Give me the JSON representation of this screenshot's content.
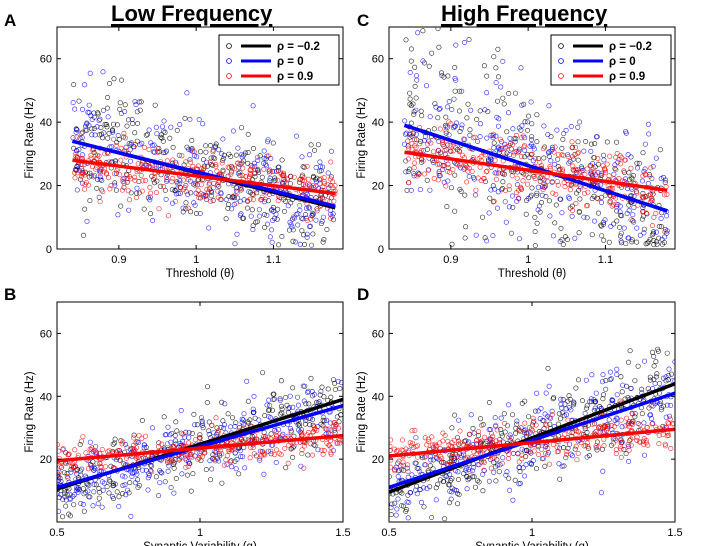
{
  "headings": {
    "left": "Low Frequency",
    "right": "High Frequency"
  },
  "legend": [
    {
      "label": "ρ = −0.2",
      "color": "#000000"
    },
    {
      "label": "ρ = 0",
      "color": "#0000ff"
    },
    {
      "label": "ρ = 0.9",
      "color": "#ff0000"
    }
  ],
  "chart_data": [
    {
      "id": "A",
      "type": "scatter",
      "panel_label": "A",
      "xlabel": "Threshold (θ)",
      "ylabel": "Firing Rate (Hz)",
      "xlim": [
        0.82,
        1.19
      ],
      "ylim": [
        0,
        70
      ],
      "xticks": [
        0.9,
        1,
        1.1
      ],
      "xtick_labels": [
        "0.9",
        "1",
        "1.1"
      ],
      "yticks": [
        0,
        20,
        40,
        60
      ],
      "ytick_labels": [
        "0",
        "20",
        "40",
        "60"
      ],
      "legend": true,
      "series": [
        {
          "name": "ρ = −0.2",
          "color": "#000000",
          "fit": [
            [
              0.84,
              34
            ],
            [
              1.18,
              13
            ]
          ],
          "spread": 10
        },
        {
          "name": "ρ = 0",
          "color": "#0000ff",
          "fit": [
            [
              0.84,
              34
            ],
            [
              1.18,
              13.5
            ]
          ],
          "spread": 10
        },
        {
          "name": "ρ = 0.9",
          "color": "#ff0000",
          "fit": [
            [
              0.84,
              28
            ],
            [
              1.18,
              17.5
            ]
          ],
          "spread": 5
        }
      ]
    },
    {
      "id": "C",
      "type": "scatter",
      "panel_label": "C",
      "xlabel": "Threshold (θ)",
      "ylabel": "Firing Rate (Hz)",
      "xlim": [
        0.82,
        1.19
      ],
      "ylim": [
        0,
        70
      ],
      "xticks": [
        0.9,
        1,
        1.1
      ],
      "xtick_labels": [
        "0.9",
        "1",
        "1.1"
      ],
      "yticks": [
        0,
        20,
        40,
        60
      ],
      "ytick_labels": [
        "0",
        "20",
        "40",
        "60"
      ],
      "legend": true,
      "series": [
        {
          "name": "ρ = −0.2",
          "color": "#000000",
          "fit": [
            [
              0.84,
              39
            ],
            [
              1.18,
              12
            ]
          ],
          "spread": 12
        },
        {
          "name": "ρ = 0",
          "color": "#0000ff",
          "fit": [
            [
              0.84,
              39
            ],
            [
              1.18,
              12
            ]
          ],
          "spread": 12
        },
        {
          "name": "ρ = 0.9",
          "color": "#ff0000",
          "fit": [
            [
              0.84,
              30.5
            ],
            [
              1.18,
              18.5
            ]
          ],
          "spread": 5
        }
      ]
    },
    {
      "id": "B",
      "type": "scatter",
      "panel_label": "B",
      "xlabel": "Synaptic Variability (q)",
      "ylabel": "Firing Rate (Hz)",
      "xlim": [
        0.5,
        1.5
      ],
      "ylim": [
        0,
        70
      ],
      "xticks": [
        0.5,
        1,
        1.5
      ],
      "xtick_labels": [
        "0.5",
        "1",
        "1.5"
      ],
      "yticks": [
        20,
        40,
        60
      ],
      "ytick_labels": [
        "20",
        "40",
        "60"
      ],
      "legend": false,
      "series": [
        {
          "name": "ρ = −0.2",
          "color": "#000000",
          "fit": [
            [
              0.5,
              10.5
            ],
            [
              1.5,
              39
            ]
          ],
          "spread": 6
        },
        {
          "name": "ρ = 0",
          "color": "#0000ff",
          "fit": [
            [
              0.5,
              11
            ],
            [
              1.5,
              37
            ]
          ],
          "spread": 6
        },
        {
          "name": "ρ = 0.9",
          "color": "#ff0000",
          "fit": [
            [
              0.5,
              19.5
            ],
            [
              1.5,
              27.5
            ]
          ],
          "spread": 3
        }
      ]
    },
    {
      "id": "D",
      "type": "scatter",
      "panel_label": "D",
      "xlabel": "Synaptic Variability (q)",
      "ylabel": "Firing Rate (Hz)",
      "xlim": [
        0.5,
        1.5
      ],
      "ylim": [
        0,
        70
      ],
      "xticks": [
        0.5,
        1,
        1.5
      ],
      "xtick_labels": [
        "0.5",
        "1",
        "1.5"
      ],
      "yticks": [
        20,
        40,
        60
      ],
      "ytick_labels": [
        "20",
        "40",
        "60"
      ],
      "legend": false,
      "series": [
        {
          "name": "ρ = −0.2",
          "color": "#000000",
          "fit": [
            [
              0.5,
              9.5
            ],
            [
              1.5,
              44
            ]
          ],
          "spread": 7
        },
        {
          "name": "ρ = 0",
          "color": "#0000ff",
          "fit": [
            [
              0.5,
              11
            ],
            [
              1.5,
              41
            ]
          ],
          "spread": 7
        },
        {
          "name": "ρ = 0.9",
          "color": "#ff0000",
          "fit": [
            [
              0.5,
              21
            ],
            [
              1.5,
              29.5
            ]
          ],
          "spread": 3.5
        }
      ]
    }
  ]
}
